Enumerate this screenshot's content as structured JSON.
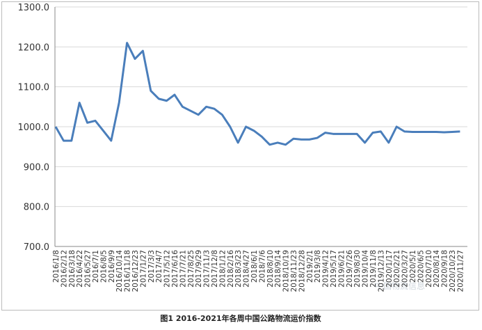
{
  "chart_data": {
    "type": "line",
    "title": "图1 2016-2021年各周中国公路物流运价指数",
    "watermark": "中国物流信息",
    "categories": [
      "2016/1/8",
      "2016/2/12",
      "2016/3/18",
      "2016/4/22",
      "2016/5/27",
      "2016/7/1",
      "2016/8/5",
      "2016/9/9",
      "2016/10/14",
      "2016/11/18",
      "2016/12/23",
      "2017/1/27",
      "2017/3/3",
      "2017/4/7",
      "2017/5/12",
      "2017/6/16",
      "2017/7/21",
      "2017/8/25",
      "2017/9/29",
      "2017/11/3",
      "2017/12/8",
      "2018/1/12",
      "2018/2/16",
      "2018/3/23",
      "2018/4/27",
      "2018/6/1",
      "2018/7/6",
      "2018/8/10",
      "2018/9/14",
      "2018/10/19",
      "2018/11/23",
      "2018/12/28",
      "2019/2/1",
      "2019/3/8",
      "2019/4/12",
      "2019/5/17",
      "2019/6/21",
      "2019/7/26",
      "2019/8/30",
      "2019/10/4",
      "2019/11/8",
      "2019/12/13",
      "2020/1/17",
      "2020/2/21",
      "2020/3/27",
      "2020/5/1",
      "2020/6/5",
      "2020/7/10",
      "2020/8/14",
      "2020/9/18",
      "2020/10/23",
      "2020/11/27"
    ],
    "values": [
      1000,
      965,
      965,
      1060,
      1010,
      1015,
      990,
      965,
      1060,
      1210,
      1170,
      1190,
      1090,
      1070,
      1065,
      1080,
      1050,
      1040,
      1030,
      1050,
      1045,
      1030,
      1000,
      960,
      1000,
      990,
      975,
      955,
      960,
      955,
      970,
      968,
      968,
      972,
      985,
      982,
      982,
      982,
      982,
      960,
      985,
      988,
      960,
      1000,
      988,
      987,
      987,
      987,
      987,
      986,
      987,
      988
    ],
    "color": "#4a7ebb",
    "ylim": [
      700,
      1300
    ],
    "yticks": [
      {
        "value": 700,
        "label": "700.0"
      },
      {
        "value": 800,
        "label": "800.0"
      },
      {
        "value": 900,
        "label": "900.0"
      },
      {
        "value": 1000,
        "label": "1000.0"
      },
      {
        "value": 1100,
        "label": "1100.0"
      },
      {
        "value": 1200,
        "label": "1200.0"
      },
      {
        "value": 1300,
        "label": "1300.0"
      }
    ],
    "grid": true
  }
}
